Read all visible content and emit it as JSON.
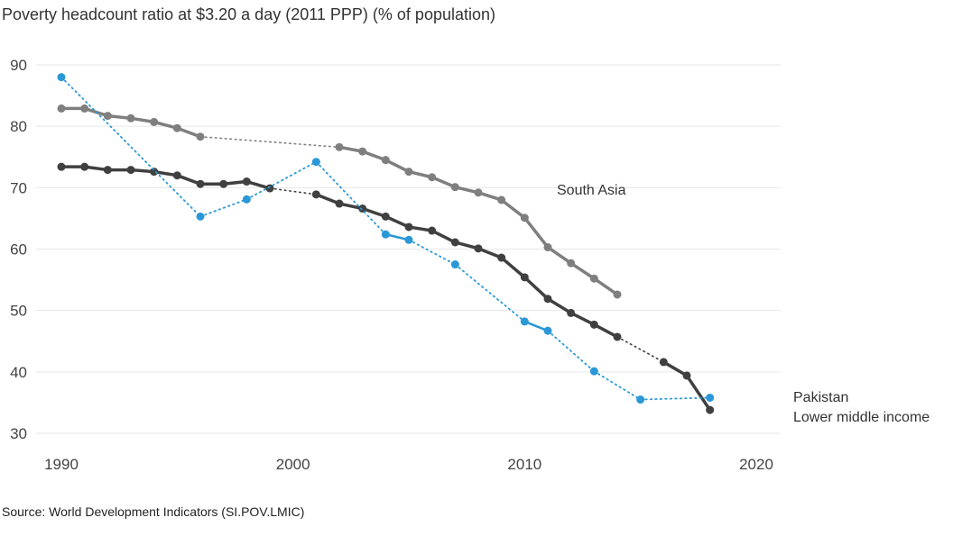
{
  "title": "Poverty headcount ratio at $3.20 a day (2011 PPP) (% of population)",
  "source": "Source: World Development Indicators (SI.POV.LMIC)",
  "chart_data": {
    "type": "line",
    "title": "Poverty headcount ratio at $3.20 a day (2011 PPP) (% of population)",
    "xlabel": "",
    "ylabel": "",
    "xlim": [
      1990,
      2020
    ],
    "ylim": [
      30,
      90
    ],
    "xticks": [
      1990,
      2000,
      2010,
      2020
    ],
    "yticks": [
      30,
      40,
      50,
      60,
      70,
      80,
      90
    ],
    "grid": true,
    "series": [
      {
        "name": "South Asia",
        "color": "#7f7f7f",
        "points": [
          [
            1990,
            82.9
          ],
          [
            1991,
            82.9
          ],
          [
            1992,
            81.7
          ],
          [
            1993,
            81.3
          ],
          [
            1994,
            80.7
          ],
          [
            1995,
            79.7
          ],
          [
            1996,
            78.3
          ],
          [
            2002,
            76.6
          ],
          [
            2003,
            75.9
          ],
          [
            2004,
            74.5
          ],
          [
            2005,
            72.6
          ],
          [
            2006,
            71.7
          ],
          [
            2007,
            70.1
          ],
          [
            2008,
            69.2
          ],
          [
            2009,
            68.0
          ],
          [
            2010,
            65.1
          ],
          [
            2011,
            60.3
          ],
          [
            2012,
            57.7
          ],
          [
            2013,
            55.2
          ],
          [
            2014,
            52.6
          ]
        ]
      },
      {
        "name": "Lower middle income",
        "color": "#404040",
        "points": [
          [
            1990,
            73.4
          ],
          [
            1991,
            73.4
          ],
          [
            1992,
            72.9
          ],
          [
            1993,
            72.9
          ],
          [
            1994,
            72.6
          ],
          [
            1995,
            72.0
          ],
          [
            1996,
            70.6
          ],
          [
            1997,
            70.6
          ],
          [
            1998,
            71.0
          ],
          [
            1999,
            69.9
          ],
          [
            2001,
            68.9
          ],
          [
            2002,
            67.4
          ],
          [
            2003,
            66.6
          ],
          [
            2004,
            65.3
          ],
          [
            2005,
            63.6
          ],
          [
            2006,
            63.0
          ],
          [
            2007,
            61.1
          ],
          [
            2008,
            60.1
          ],
          [
            2009,
            58.6
          ],
          [
            2010,
            55.4
          ],
          [
            2011,
            51.9
          ],
          [
            2012,
            49.6
          ],
          [
            2013,
            47.7
          ],
          [
            2014,
            45.7
          ],
          [
            2016,
            41.6
          ],
          [
            2017,
            39.4
          ],
          [
            2018,
            33.8
          ]
        ]
      },
      {
        "name": "Pakistan",
        "color": "#2a98d6",
        "points": [
          [
            1990,
            88.0
          ],
          [
            1996,
            65.3
          ],
          [
            1998,
            68.1
          ],
          [
            2001,
            74.2
          ],
          [
            2004,
            62.4
          ],
          [
            2005,
            61.5
          ],
          [
            2007,
            57.5
          ],
          [
            2010,
            48.2
          ],
          [
            2011,
            46.7
          ],
          [
            2013,
            40.1
          ],
          [
            2015,
            35.5
          ],
          [
            2018,
            35.8
          ]
        ]
      }
    ],
    "labels": {
      "south_asia": "South Asia",
      "pakistan": "Pakistan",
      "lmic": "Lower middle income"
    }
  }
}
